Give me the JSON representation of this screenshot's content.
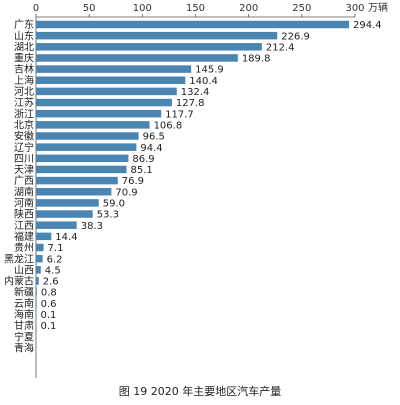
{
  "caption": "图 19   2020 年主要地区汽车产量",
  "chart_data": {
    "type": "bar",
    "orientation": "horizontal",
    "title": "图 19   2020 年主要地区汽车产量",
    "xlabel": "万辆",
    "ylabel": "",
    "xlim": [
      0,
      300
    ],
    "xticks": [
      0,
      50,
      100,
      150,
      200,
      250,
      300
    ],
    "axis_position": "top",
    "grid": false,
    "bar_color": "#4a86b1",
    "categories": [
      "广东",
      "山东",
      "湖北",
      "重庆",
      "吉林",
      "上海",
      "河北",
      "江苏",
      "浙江",
      "北京",
      "安徽",
      "辽宁",
      "四川",
      "天津",
      "广西",
      "湖南",
      "河南",
      "陕西",
      "江西",
      "福建",
      "贵州",
      "黑龙江",
      "山西",
      "内蒙古",
      "新疆",
      "云南",
      "海南",
      "甘肃",
      "宁夏",
      "青海"
    ],
    "values": [
      294.4,
      226.9,
      212.4,
      189.8,
      145.9,
      140.4,
      132.4,
      127.8,
      117.7,
      106.8,
      96.5,
      94.4,
      86.9,
      85.1,
      76.9,
      70.9,
      59.0,
      53.3,
      38.3,
      14.4,
      7.1,
      6.2,
      4.5,
      2.6,
      0.8,
      0.6,
      0.1,
      0.1,
      null,
      null
    ],
    "labels": [
      "294.4",
      "226.9",
      "212.4",
      "189.8",
      "145.9",
      "140.4",
      "132.4",
      "127.8",
      "117.7",
      "106.8",
      "96.5",
      "94.4",
      "86.9",
      "85.1",
      "76.9",
      "70.9",
      "59.0",
      "53.3",
      "38.3",
      "14.4",
      "7.1",
      "6.2",
      "4.5",
      "2.6",
      "0.8",
      "0.6",
      "0.1",
      "0.1",
      "",
      ""
    ]
  }
}
